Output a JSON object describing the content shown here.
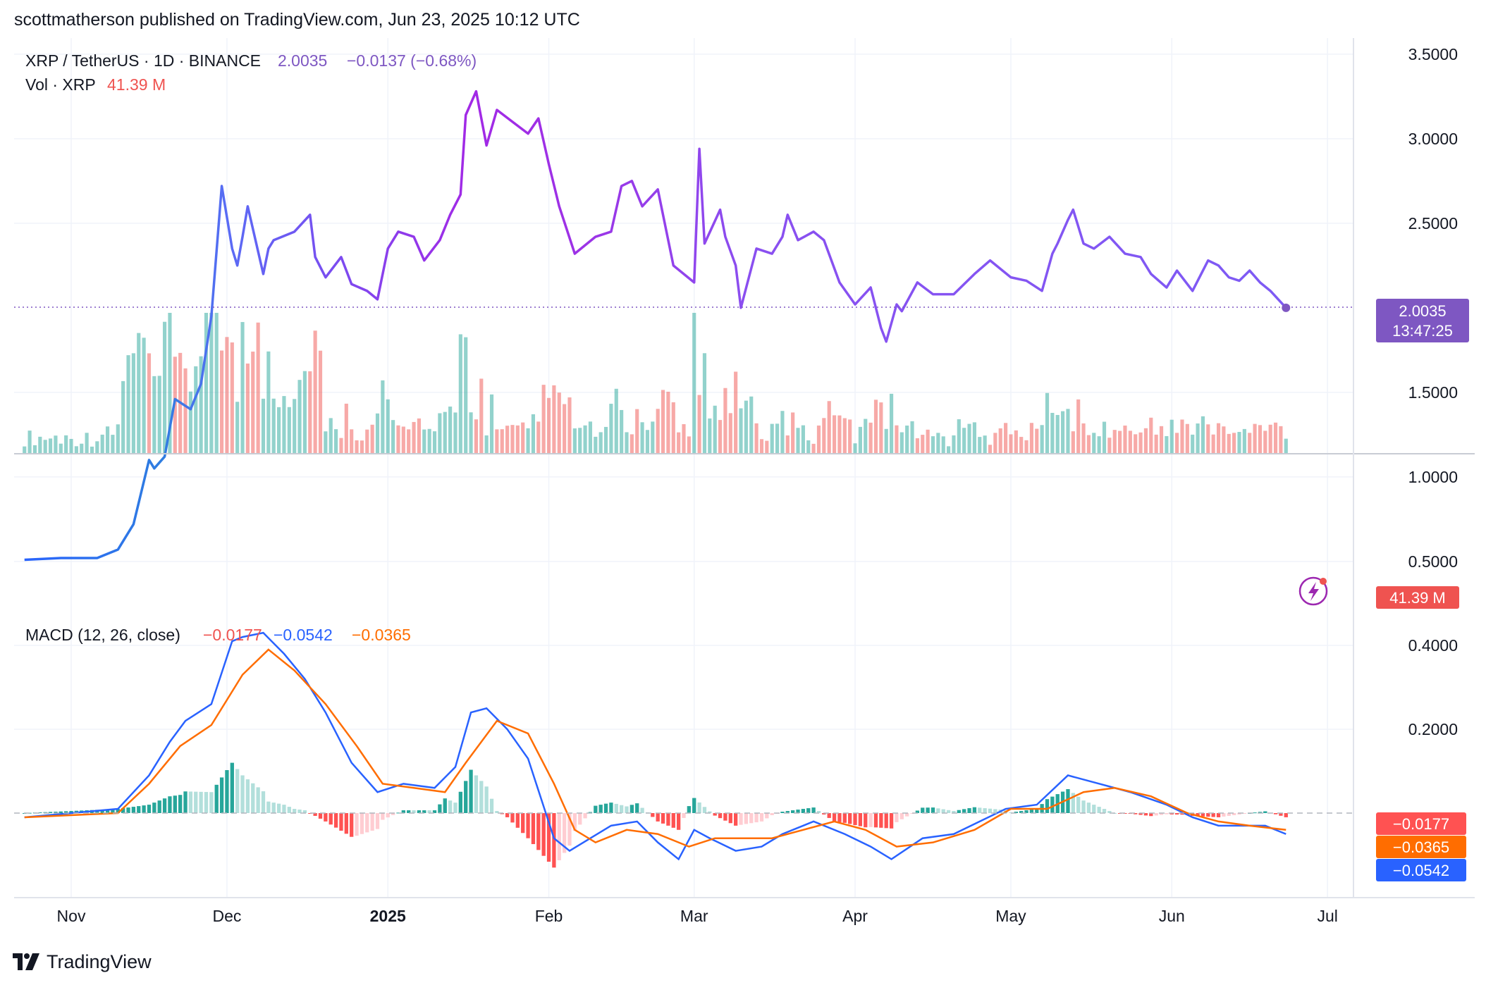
{
  "header": {
    "text": "scottmatherson published on TradingView.com, Jun 23, 2025 10:12 UTC"
  },
  "legend": {
    "symbol": "XRP / TetherUS · 1D · BINANCE",
    "price": "2.0035",
    "change": "−0.0137 (−0.68%)",
    "vol_label": "Vol · XRP",
    "vol_value": "41.39 M",
    "macd_label": "MACD (12, 26, close)",
    "macd_hist": "−0.0177",
    "macd_line": "−0.0542",
    "macd_signal": "−0.0365"
  },
  "badges": {
    "price": "2.0035",
    "countdown": "13:47:25",
    "volume": "41.39 M",
    "macd_hist": "−0.0177",
    "macd_signal": "−0.0365",
    "macd_line": "−0.0542"
  },
  "footer": {
    "brand": "TradingView"
  },
  "colors": {
    "price_line_start": "#2962ff",
    "price_line_end": "#9c27b0",
    "price_marker": "#7e57c2",
    "vol_up": "#26a69a",
    "vol_down": "#ef5350",
    "macd_line": "#2962ff",
    "signal_line": "#ff6d00",
    "hist_up_strong": "#26a69a",
    "hist_up_weak": "#b2dfdb",
    "hist_down_strong": "#ff5252",
    "hist_down_weak": "#ffcdd2"
  },
  "chart_data": {
    "type": "line",
    "price_axis": {
      "ticks": [
        "3.5000",
        "3.0000",
        "2.5000",
        "1.5000",
        "1.0000",
        "0.5000"
      ],
      "tick_values": [
        3.5,
        3.0,
        2.5,
        1.5,
        1.0,
        0.5
      ]
    },
    "macd_axis": {
      "ticks": [
        "0.4000",
        "0.2000"
      ],
      "tick_values": [
        0.4,
        0.2
      ]
    },
    "time_axis": {
      "labels": [
        "Nov",
        "Dec",
        "2025",
        "Feb",
        "Mar",
        "Apr",
        "May",
        "Jun",
        "Jul"
      ],
      "dates": [
        "2024-11-01",
        "2024-12-01",
        "2025-01-01",
        "2025-02-01",
        "2025-03-01",
        "2025-04-01",
        "2025-05-01",
        "2025-06-01",
        "2025-07-01"
      ]
    },
    "price_series": {
      "name": "XRP / TetherUS",
      "x": [
        "2024-10-23",
        "2024-10-30",
        "2024-11-06",
        "2024-11-10",
        "2024-11-13",
        "2024-11-16",
        "2024-11-17",
        "2024-11-19",
        "2024-11-21",
        "2024-11-23",
        "2024-11-24",
        "2024-11-26",
        "2024-11-28",
        "2024-11-30",
        "2024-12-02",
        "2024-12-03",
        "2024-12-04",
        "2024-12-05",
        "2024-12-08",
        "2024-12-09",
        "2024-12-10",
        "2024-12-14",
        "2024-12-17",
        "2024-12-18",
        "2024-12-20",
        "2024-12-23",
        "2024-12-25",
        "2024-12-28",
        "2024-12-30",
        "2025-01-01",
        "2025-01-03",
        "2025-01-06",
        "2025-01-08",
        "2025-01-11",
        "2025-01-13",
        "2025-01-15",
        "2025-01-16",
        "2025-01-18",
        "2025-01-20",
        "2025-01-22",
        "2025-01-25",
        "2025-01-28",
        "2025-01-30",
        "2025-02-01",
        "2025-02-03",
        "2025-02-06",
        "2025-02-10",
        "2025-02-13",
        "2025-02-15",
        "2025-02-17",
        "2025-02-19",
        "2025-02-22",
        "2025-02-25",
        "2025-02-27",
        "2025-03-01",
        "2025-03-02",
        "2025-03-03",
        "2025-03-06",
        "2025-03-07",
        "2025-03-09",
        "2025-03-10",
        "2025-03-13",
        "2025-03-16",
        "2025-03-18",
        "2025-03-19",
        "2025-03-21",
        "2025-03-24",
        "2025-03-26",
        "2025-03-29",
        "2025-04-01",
        "2025-04-04",
        "2025-04-06",
        "2025-04-07",
        "2025-04-09",
        "2025-04-10",
        "2025-04-13",
        "2025-04-16",
        "2025-04-20",
        "2025-04-24",
        "2025-04-27",
        "2025-05-01",
        "2025-05-04",
        "2025-05-07",
        "2025-05-09",
        "2025-05-10",
        "2025-05-12",
        "2025-05-13",
        "2025-05-15",
        "2025-05-17",
        "2025-05-20",
        "2025-05-23",
        "2025-05-26",
        "2025-05-28",
        "2025-05-31",
        "2025-06-02",
        "2025-06-05",
        "2025-06-08",
        "2025-06-10",
        "2025-06-12",
        "2025-06-14",
        "2025-06-16",
        "2025-06-18",
        "2025-06-20",
        "2025-06-23"
      ],
      "values": [
        0.51,
        0.52,
        0.52,
        0.57,
        0.72,
        1.1,
        1.05,
        1.12,
        1.46,
        1.42,
        1.4,
        1.55,
        1.95,
        2.72,
        2.35,
        2.25,
        2.42,
        2.6,
        2.2,
        2.35,
        2.4,
        2.45,
        2.55,
        2.3,
        2.18,
        2.3,
        2.14,
        2.1,
        2.05,
        2.35,
        2.45,
        2.42,
        2.28,
        2.4,
        2.55,
        2.67,
        3.14,
        3.28,
        2.96,
        3.17,
        3.1,
        3.03,
        3.12,
        2.85,
        2.6,
        2.32,
        2.42,
        2.45,
        2.72,
        2.75,
        2.6,
        2.7,
        2.25,
        2.2,
        2.15,
        2.94,
        2.38,
        2.58,
        2.42,
        2.25,
        2.0,
        2.35,
        2.32,
        2.42,
        2.55,
        2.4,
        2.45,
        2.4,
        2.15,
        2.02,
        2.12,
        1.88,
        1.8,
        2.02,
        1.98,
        2.15,
        2.08,
        2.08,
        2.2,
        2.28,
        2.18,
        2.16,
        2.1,
        2.32,
        2.38,
        2.52,
        2.58,
        2.38,
        2.35,
        2.42,
        2.32,
        2.3,
        2.2,
        2.12,
        2.22,
        2.1,
        2.28,
        2.25,
        2.18,
        2.16,
        2.22,
        2.15,
        2.1,
        2.0
      ]
    },
    "macd_series": [
      {
        "name": "MACD",
        "x": [
          "2024-10-23",
          "2024-11-10",
          "2024-11-16",
          "2024-11-20",
          "2024-11-23",
          "2024-11-28",
          "2024-12-02",
          "2024-12-04",
          "2024-12-08",
          "2024-12-12",
          "2024-12-16",
          "2024-12-20",
          "2024-12-25",
          "2024-12-30",
          "2025-01-04",
          "2025-01-10",
          "2025-01-14",
          "2025-01-17",
          "2025-01-20",
          "2025-01-24",
          "2025-01-28",
          "2025-02-02",
          "2025-02-05",
          "2025-02-09",
          "2025-02-13",
          "2025-02-18",
          "2025-02-22",
          "2025-02-26",
          "2025-03-01",
          "2025-03-04",
          "2025-03-09",
          "2025-03-14",
          "2025-03-18",
          "2025-03-24",
          "2025-03-30",
          "2025-04-04",
          "2025-04-08",
          "2025-04-14",
          "2025-04-20",
          "2025-04-25",
          "2025-04-30",
          "2025-05-06",
          "2025-05-12",
          "2025-05-18",
          "2025-05-24",
          "2025-05-31",
          "2025-06-05",
          "2025-06-10",
          "2025-06-15",
          "2025-06-19",
          "2025-06-23"
        ],
        "values": [
          -0.01,
          0.01,
          0.09,
          0.17,
          0.22,
          0.26,
          0.41,
          0.42,
          0.43,
          0.38,
          0.32,
          0.24,
          0.12,
          0.05,
          0.07,
          0.06,
          0.11,
          0.24,
          0.25,
          0.2,
          0.13,
          -0.06,
          -0.09,
          -0.06,
          -0.03,
          -0.02,
          -0.07,
          -0.11,
          -0.04,
          -0.06,
          -0.09,
          -0.08,
          -0.05,
          -0.02,
          -0.05,
          -0.08,
          -0.11,
          -0.06,
          -0.05,
          -0.02,
          0.01,
          0.02,
          0.09,
          0.07,
          0.05,
          0.02,
          -0.01,
          -0.03,
          -0.03,
          -0.03,
          -0.05
        ]
      },
      {
        "name": "Signal",
        "x": [
          "2024-10-23",
          "2024-11-10",
          "2024-11-16",
          "2024-11-22",
          "2024-11-28",
          "2024-12-04",
          "2024-12-09",
          "2024-12-14",
          "2024-12-20",
          "2024-12-26",
          "2024-12-31",
          "2025-01-06",
          "2025-01-12",
          "2025-01-16",
          "2025-01-22",
          "2025-01-28",
          "2025-02-02",
          "2025-02-06",
          "2025-02-10",
          "2025-02-16",
          "2025-02-22",
          "2025-02-28",
          "2025-03-05",
          "2025-03-11",
          "2025-03-16",
          "2025-03-22",
          "2025-03-28",
          "2025-04-03",
          "2025-04-09",
          "2025-04-16",
          "2025-04-24",
          "2025-05-01",
          "2025-05-08",
          "2025-05-15",
          "2025-05-21",
          "2025-05-28",
          "2025-06-04",
          "2025-06-10",
          "2025-06-16",
          "2025-06-23"
        ],
        "values": [
          -0.01,
          0.0,
          0.07,
          0.16,
          0.21,
          0.33,
          0.39,
          0.34,
          0.26,
          0.16,
          0.07,
          0.06,
          0.05,
          0.12,
          0.22,
          0.19,
          0.07,
          -0.04,
          -0.07,
          -0.04,
          -0.05,
          -0.08,
          -0.06,
          -0.06,
          -0.06,
          -0.04,
          -0.02,
          -0.04,
          -0.08,
          -0.07,
          -0.04,
          0.01,
          0.01,
          0.05,
          0.06,
          0.04,
          0.0,
          -0.02,
          -0.03,
          -0.04
        ]
      }
    ]
  }
}
